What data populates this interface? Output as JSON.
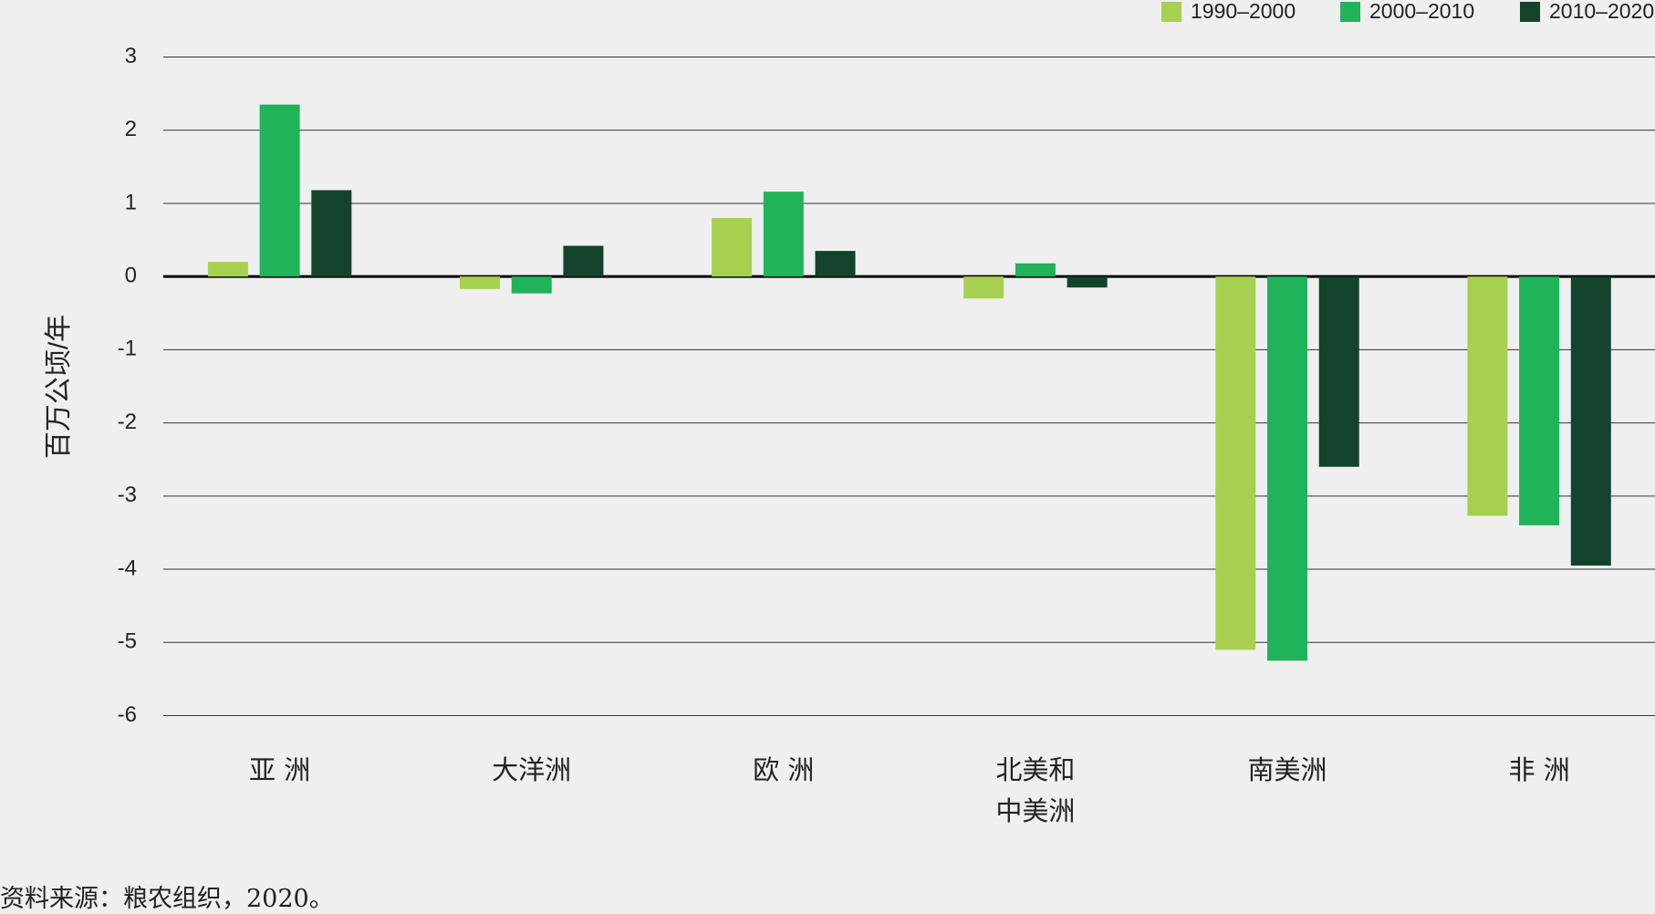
{
  "chart_data": {
    "type": "bar",
    "categories": [
      "亚 洲",
      "大洋洲",
      "欧 洲",
      "北美和\n中美洲",
      "南美洲",
      "非 洲"
    ],
    "series": [
      {
        "name": "1990–2000",
        "color": "#a8d050",
        "values": [
          0.2,
          -0.17,
          0.8,
          -0.3,
          -5.1,
          -3.27
        ]
      },
      {
        "name": "2000–2010",
        "color": "#20b35a",
        "values": [
          2.35,
          -0.23,
          1.16,
          0.18,
          -5.25,
          -3.4
        ]
      },
      {
        "name": "2010–2020",
        "color": "#13432d",
        "values": [
          1.18,
          0.42,
          0.35,
          -0.15,
          -2.6,
          -3.95
        ]
      }
    ],
    "y_label": "百万公顷/年",
    "source": "资料来源：粮农组织，2020。",
    "ylim": [
      -6,
      3
    ],
    "yticks": [
      -6,
      -5,
      -4,
      -3,
      -2,
      -1,
      0,
      1,
      2,
      3
    ],
    "grid": true,
    "legend": "top-right"
  }
}
